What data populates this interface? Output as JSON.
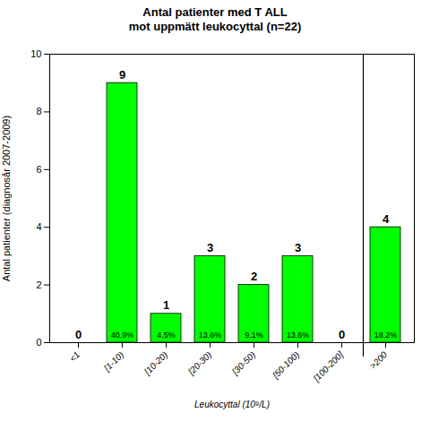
{
  "chart_data": {
    "type": "bar",
    "title": "Antal patienter med T ALL",
    "subtitle": "mot uppmätt leukocyttal (n=22)",
    "categories": [
      "<1",
      "[1-10)",
      "[10-20)",
      "[20-30)",
      "[30-50)",
      "[50-100)",
      "[100-200]",
      ">200"
    ],
    "values": [
      0,
      9,
      1,
      3,
      2,
      3,
      0,
      4
    ],
    "percentages": [
      null,
      40.9,
      4.5,
      13.6,
      9.1,
      13.6,
      null,
      18.2
    ],
    "percentage_labels": [
      null,
      "40.9%",
      "4.5%",
      "13.6%",
      "9.1%",
      "13.6%",
      null,
      "18.2%"
    ],
    "color": "#00FF00",
    "xlabel": "Leukocyttal (10⁹/L)",
    "ylabel": "Antal patienter (diagnosår 2007-2009)",
    "ylim": [
      0,
      10
    ],
    "yticks": [
      0,
      2,
      4,
      6,
      8,
      10
    ],
    "vline_after": "[100-200]",
    "grid": false,
    "data_labels": true
  }
}
